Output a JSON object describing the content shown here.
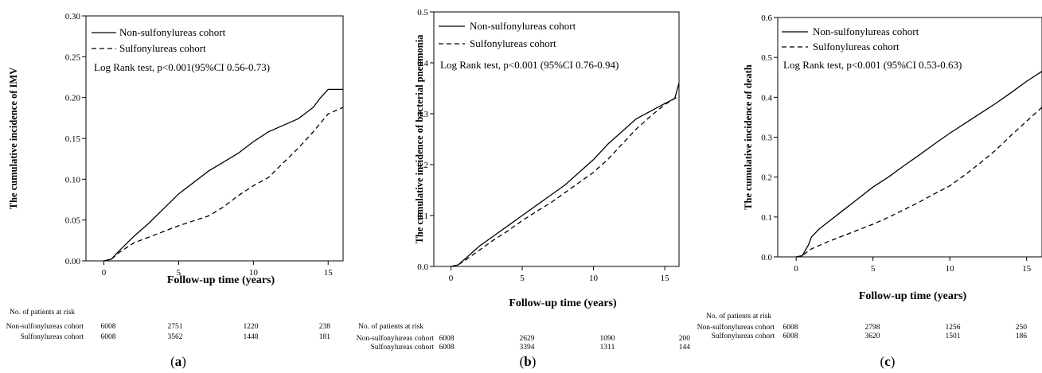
{
  "chart_data": [
    {
      "type": "line",
      "panel_label": "(a)",
      "panel_letter": "a",
      "ylabel": "The cumulative incidence of IMV",
      "xlabel": "Follow-up  time  (years)",
      "xlim": [
        -1.2,
        16
      ],
      "ylim": [
        0,
        0.3
      ],
      "xticks": [
        0,
        5,
        10,
        15
      ],
      "yticks": [
        0.0,
        0.05,
        0.1,
        0.15,
        0.2,
        0.25,
        0.3
      ],
      "ytick_labels": [
        "0.00",
        "0.05",
        "0.10",
        "0.15",
        "0.20",
        "0.25",
        "0.30"
      ],
      "legend": [
        "Non-sulfonylureas cohort",
        "Sulfonylureas cohort"
      ],
      "annotation": "Log Rank test, p<0.001(95%CI 0.56-0.73)",
      "series": [
        {
          "name": "Non-sulfonylureas cohort",
          "style": "solid",
          "x": [
            0,
            0.5,
            1,
            2,
            3,
            4,
            5,
            6,
            7,
            8,
            9,
            10,
            11,
            12,
            13,
            14,
            14.5,
            15,
            16
          ],
          "y": [
            0,
            0.002,
            0.012,
            0.03,
            0.046,
            0.064,
            0.082,
            0.096,
            0.11,
            0.121,
            0.132,
            0.146,
            0.158,
            0.166,
            0.174,
            0.188,
            0.2,
            0.21,
            0.21
          ]
        },
        {
          "name": "Sulfonylureas cohort",
          "style": "dashed",
          "x": [
            0,
            0.5,
            1,
            2,
            3,
            4,
            5,
            6,
            7,
            8,
            9,
            10,
            11,
            12,
            13,
            14,
            15,
            16
          ],
          "y": [
            0,
            0.002,
            0.01,
            0.022,
            0.029,
            0.036,
            0.043,
            0.049,
            0.055,
            0.066,
            0.08,
            0.092,
            0.102,
            0.12,
            0.138,
            0.158,
            0.18,
            0.188
          ]
        }
      ],
      "risk_table": {
        "title": "No. of patients at risk",
        "rows": [
          {
            "label": "Non-sulfonylureas cohort",
            "values": [
              "6008",
              "2751",
              "1220",
              "238"
            ]
          },
          {
            "label": "Sulfonylureas cohort",
            "values": [
              "6008",
              "3562",
              "1448",
              "181"
            ]
          }
        ]
      }
    },
    {
      "type": "line",
      "panel_label": "(b)",
      "panel_letter": "b",
      "ylabel": "The cumulative incidence of bacterial pneumonia",
      "xlabel": "Follow-up  time  (years)",
      "xlim": [
        -1.2,
        16
      ],
      "ylim": [
        0,
        0.5
      ],
      "xticks": [
        0,
        5,
        10,
        15
      ],
      "yticks": [
        0.0,
        0.1,
        0.2,
        0.3,
        0.4,
        0.5
      ],
      "ytick_labels": [
        "0.0",
        "0.1",
        "0.2",
        "0.3",
        "0.4",
        "0.5"
      ],
      "legend": [
        "Non-sulfonylureas cohort",
        "Sulfonylureas cohort"
      ],
      "annotation": "Log Rank test, p<0.001 (95%CI 0.76-0.94)",
      "series": [
        {
          "name": "Non-sulfonylureas cohort",
          "style": "solid",
          "x": [
            0,
            0.5,
            1,
            2,
            3,
            4,
            5,
            6,
            7,
            8,
            9,
            10,
            11,
            12,
            13,
            14,
            15,
            15.7,
            16
          ],
          "y": [
            0,
            0.003,
            0.015,
            0.04,
            0.06,
            0.08,
            0.1,
            0.12,
            0.14,
            0.16,
            0.185,
            0.21,
            0.24,
            0.265,
            0.29,
            0.305,
            0.32,
            0.33,
            0.36
          ]
        },
        {
          "name": "Sulfonylureas cohort",
          "style": "dashed",
          "x": [
            0,
            0.5,
            1,
            2,
            3,
            4,
            5,
            6,
            7,
            8,
            9,
            10,
            11,
            12,
            13,
            14,
            15,
            16
          ],
          "y": [
            0,
            0.003,
            0.012,
            0.032,
            0.052,
            0.07,
            0.09,
            0.108,
            0.125,
            0.145,
            0.165,
            0.185,
            0.21,
            0.24,
            0.27,
            0.295,
            0.318,
            0.335
          ]
        }
      ],
      "risk_table": {
        "title": "No. of patients at risk",
        "rows": [
          {
            "label": "Non-sulfonylureas cohort",
            "values": [
              "6008",
              "2629",
              "1090",
              "200"
            ]
          },
          {
            "label": "Sulfonylureas cohort",
            "values": [
              "6008",
              "3394",
              "1311",
              "144"
            ]
          }
        ]
      }
    },
    {
      "type": "line",
      "panel_label": "(c)",
      "panel_letter": "c",
      "ylabel": "The cumulative incidence of death",
      "xlabel": "Follow-up  time    (years)",
      "xlim": [
        -1.2,
        16
      ],
      "ylim": [
        0,
        0.6
      ],
      "xticks": [
        0,
        5,
        10,
        15
      ],
      "yticks": [
        0.0,
        0.1,
        0.2,
        0.3,
        0.4,
        0.5,
        0.6
      ],
      "ytick_labels": [
        "0.0",
        "0.1",
        "0.2",
        "0.3",
        "0.4",
        "0.5",
        "0.6"
      ],
      "legend": [
        "Non-sulfonylureas cohort",
        "Sulfonylureas cohort"
      ],
      "annotation": "Log Rank test, p<0.001 (95%CI 0.53-0.63)",
      "series": [
        {
          "name": "Non-sulfonylureas cohort",
          "style": "solid",
          "x": [
            0,
            0.4,
            0.8,
            1,
            1.5,
            2,
            3,
            4,
            5,
            6,
            7,
            8,
            9,
            10,
            11,
            12,
            13,
            14,
            15,
            16
          ],
          "y": [
            0,
            0.003,
            0.03,
            0.05,
            0.07,
            0.085,
            0.115,
            0.145,
            0.175,
            0.2,
            0.228,
            0.255,
            0.283,
            0.31,
            0.335,
            0.36,
            0.385,
            0.412,
            0.44,
            0.465
          ]
        },
        {
          "name": "Sulfonylureas cohort",
          "style": "dashed",
          "x": [
            0,
            0.4,
            0.8,
            1,
            2,
            3,
            4,
            5,
            6,
            7,
            8,
            9,
            10,
            11,
            12,
            13,
            14,
            15,
            16
          ],
          "y": [
            0,
            0.003,
            0.015,
            0.02,
            0.037,
            0.052,
            0.067,
            0.082,
            0.099,
            0.118,
            0.137,
            0.158,
            0.178,
            0.206,
            0.236,
            0.268,
            0.305,
            0.34,
            0.375
          ]
        }
      ],
      "risk_table": {
        "title": "No. of patients at risk",
        "rows": [
          {
            "label": "Non-sulfonylureas cohort",
            "values": [
              "6008",
              "2798",
              "1256",
              "250"
            ]
          },
          {
            "label": "Sulfonylureas cohort",
            "values": [
              "6008",
              "3620",
              "1501",
              "186"
            ]
          }
        ]
      }
    }
  ]
}
